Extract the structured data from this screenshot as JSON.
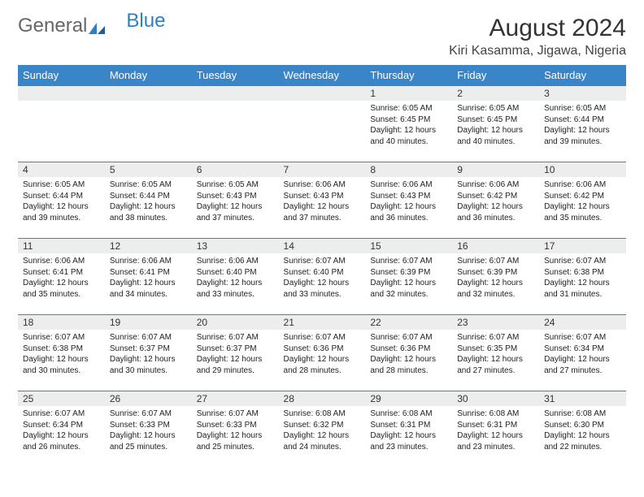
{
  "brand": {
    "part1": "General",
    "part2": "Blue"
  },
  "title": "August 2024",
  "location": "Kiri Kasamma, Jigawa, Nigeria",
  "colors": {
    "header_bg": "#3a85c7",
    "header_text": "#ffffff",
    "daynum_bg": "#eceded",
    "border": "#3a85c7",
    "text": "#222222",
    "logo_gray": "#666666",
    "logo_blue": "#2f7fc2"
  },
  "daysOfWeek": [
    "Sunday",
    "Monday",
    "Tuesday",
    "Wednesday",
    "Thursday",
    "Friday",
    "Saturday"
  ],
  "weeks": [
    [
      {
        "n": "",
        "sr": "",
        "ss": "",
        "dl": ""
      },
      {
        "n": "",
        "sr": "",
        "ss": "",
        "dl": ""
      },
      {
        "n": "",
        "sr": "",
        "ss": "",
        "dl": ""
      },
      {
        "n": "",
        "sr": "",
        "ss": "",
        "dl": ""
      },
      {
        "n": "1",
        "sr": "6:05 AM",
        "ss": "6:45 PM",
        "dl": "12 hours and 40 minutes."
      },
      {
        "n": "2",
        "sr": "6:05 AM",
        "ss": "6:45 PM",
        "dl": "12 hours and 40 minutes."
      },
      {
        "n": "3",
        "sr": "6:05 AM",
        "ss": "6:44 PM",
        "dl": "12 hours and 39 minutes."
      }
    ],
    [
      {
        "n": "4",
        "sr": "6:05 AM",
        "ss": "6:44 PM",
        "dl": "12 hours and 39 minutes."
      },
      {
        "n": "5",
        "sr": "6:05 AM",
        "ss": "6:44 PM",
        "dl": "12 hours and 38 minutes."
      },
      {
        "n": "6",
        "sr": "6:05 AM",
        "ss": "6:43 PM",
        "dl": "12 hours and 37 minutes."
      },
      {
        "n": "7",
        "sr": "6:06 AM",
        "ss": "6:43 PM",
        "dl": "12 hours and 37 minutes."
      },
      {
        "n": "8",
        "sr": "6:06 AM",
        "ss": "6:43 PM",
        "dl": "12 hours and 36 minutes."
      },
      {
        "n": "9",
        "sr": "6:06 AM",
        "ss": "6:42 PM",
        "dl": "12 hours and 36 minutes."
      },
      {
        "n": "10",
        "sr": "6:06 AM",
        "ss": "6:42 PM",
        "dl": "12 hours and 35 minutes."
      }
    ],
    [
      {
        "n": "11",
        "sr": "6:06 AM",
        "ss": "6:41 PM",
        "dl": "12 hours and 35 minutes."
      },
      {
        "n": "12",
        "sr": "6:06 AM",
        "ss": "6:41 PM",
        "dl": "12 hours and 34 minutes."
      },
      {
        "n": "13",
        "sr": "6:06 AM",
        "ss": "6:40 PM",
        "dl": "12 hours and 33 minutes."
      },
      {
        "n": "14",
        "sr": "6:07 AM",
        "ss": "6:40 PM",
        "dl": "12 hours and 33 minutes."
      },
      {
        "n": "15",
        "sr": "6:07 AM",
        "ss": "6:39 PM",
        "dl": "12 hours and 32 minutes."
      },
      {
        "n": "16",
        "sr": "6:07 AM",
        "ss": "6:39 PM",
        "dl": "12 hours and 32 minutes."
      },
      {
        "n": "17",
        "sr": "6:07 AM",
        "ss": "6:38 PM",
        "dl": "12 hours and 31 minutes."
      }
    ],
    [
      {
        "n": "18",
        "sr": "6:07 AM",
        "ss": "6:38 PM",
        "dl": "12 hours and 30 minutes."
      },
      {
        "n": "19",
        "sr": "6:07 AM",
        "ss": "6:37 PM",
        "dl": "12 hours and 30 minutes."
      },
      {
        "n": "20",
        "sr": "6:07 AM",
        "ss": "6:37 PM",
        "dl": "12 hours and 29 minutes."
      },
      {
        "n": "21",
        "sr": "6:07 AM",
        "ss": "6:36 PM",
        "dl": "12 hours and 28 minutes."
      },
      {
        "n": "22",
        "sr": "6:07 AM",
        "ss": "6:36 PM",
        "dl": "12 hours and 28 minutes."
      },
      {
        "n": "23",
        "sr": "6:07 AM",
        "ss": "6:35 PM",
        "dl": "12 hours and 27 minutes."
      },
      {
        "n": "24",
        "sr": "6:07 AM",
        "ss": "6:34 PM",
        "dl": "12 hours and 27 minutes."
      }
    ],
    [
      {
        "n": "25",
        "sr": "6:07 AM",
        "ss": "6:34 PM",
        "dl": "12 hours and 26 minutes."
      },
      {
        "n": "26",
        "sr": "6:07 AM",
        "ss": "6:33 PM",
        "dl": "12 hours and 25 minutes."
      },
      {
        "n": "27",
        "sr": "6:07 AM",
        "ss": "6:33 PM",
        "dl": "12 hours and 25 minutes."
      },
      {
        "n": "28",
        "sr": "6:08 AM",
        "ss": "6:32 PM",
        "dl": "12 hours and 24 minutes."
      },
      {
        "n": "29",
        "sr": "6:08 AM",
        "ss": "6:31 PM",
        "dl": "12 hours and 23 minutes."
      },
      {
        "n": "30",
        "sr": "6:08 AM",
        "ss": "6:31 PM",
        "dl": "12 hours and 23 minutes."
      },
      {
        "n": "31",
        "sr": "6:08 AM",
        "ss": "6:30 PM",
        "dl": "12 hours and 22 minutes."
      }
    ]
  ],
  "labels": {
    "sunrise": "Sunrise: ",
    "sunset": "Sunset: ",
    "daylight": "Daylight: "
  }
}
